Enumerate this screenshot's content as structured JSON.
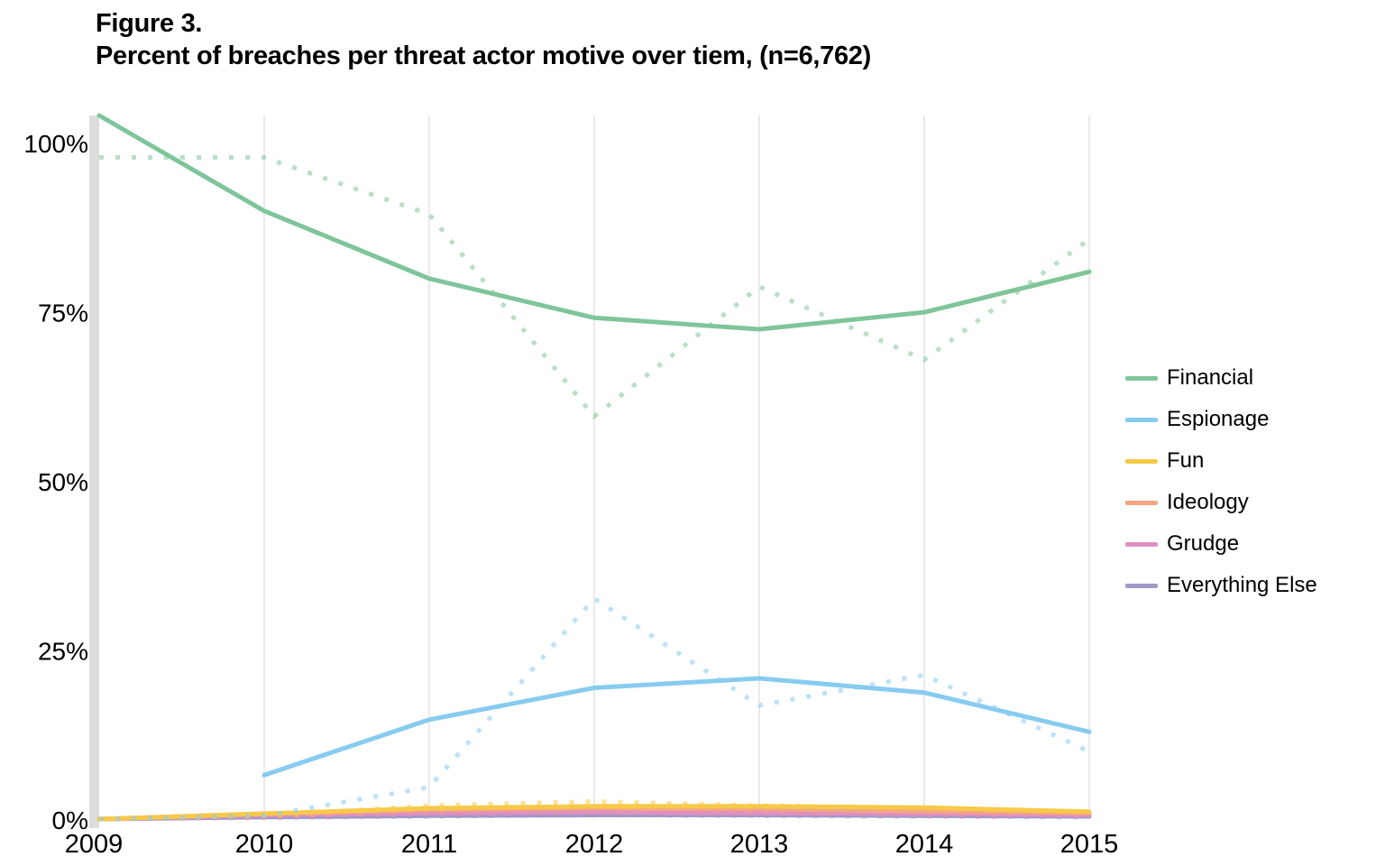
{
  "figure": {
    "label": "Figure 3.",
    "title": "Percent of breaches per threat actor motive over tiem, (n=6,762)"
  },
  "chart_data": {
    "type": "line",
    "title": "Percent of breaches per threat actor motive over tiem, (n=6,762)",
    "xlabel": "",
    "ylabel": "",
    "x": [
      2009,
      2010,
      2011,
      2012,
      2013,
      2014,
      2015
    ],
    "x_tick_labels": [
      "2009",
      "2010",
      "2011",
      "2012",
      "2013",
      "2014",
      "2015"
    ],
    "y_ticks": [
      0,
      25,
      50,
      75,
      100
    ],
    "y_tick_labels": [
      "0%",
      "25%",
      "50%",
      "75%",
      "100%"
    ],
    "ylim": [
      0,
      104
    ],
    "grid": "vertical",
    "legend_position": "right",
    "series": [
      {
        "name": "Financial",
        "color": "#7fc59a",
        "trend": [
          104,
          89.9,
          79.9,
          74.1,
          72.4,
          74.9,
          80.9
        ],
        "actual": [
          97.8,
          97.8,
          89.4,
          59.5,
          78.7,
          67.9,
          85.7
        ]
      },
      {
        "name": "Espionage",
        "color": "#87cbf0",
        "trend": [
          null,
          6.5,
          14.7,
          19.4,
          20.8,
          18.7,
          12.9
        ],
        "actual": [
          0,
          0.5,
          4.7,
          32.6,
          16.8,
          21.3,
          10.0
        ]
      },
      {
        "name": "Fun",
        "color": "#f7c948",
        "trend": [
          0,
          0.8,
          1.6,
          1.9,
          1.9,
          1.7,
          1.1
        ],
        "actual": [
          0,
          0.5,
          2.0,
          2.6,
          2.0,
          1.7,
          1.0
        ]
      },
      {
        "name": "Ideology",
        "color": "#f4a582",
        "trend": [
          0,
          0.8,
          1.4,
          1.6,
          1.5,
          1.2,
          0.9
        ],
        "actual": [
          0,
          0.4,
          1.2,
          1.8,
          1.3,
          1.0,
          0.8
        ]
      },
      {
        "name": "Grudge",
        "color": "#e08fbf",
        "trend": [
          0,
          0.6,
          0.9,
          1.0,
          0.9,
          0.8,
          0.6
        ],
        "actual": [
          0,
          0.3,
          0.7,
          1.0,
          0.8,
          0.6,
          0.5
        ]
      },
      {
        "name": "Everything Else",
        "color": "#9f98c8",
        "trend": [
          0,
          0.3,
          0.5,
          0.6,
          0.6,
          0.5,
          0.4
        ],
        "actual": [
          0,
          0.2,
          0.4,
          0.6,
          0.5,
          0.4,
          0.3
        ]
      }
    ]
  }
}
